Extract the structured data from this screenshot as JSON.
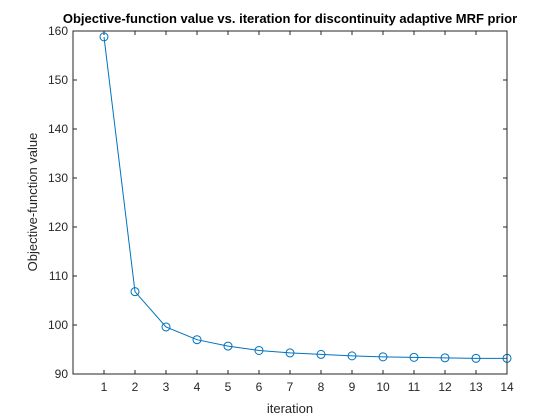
{
  "chart_data": {
    "type": "line",
    "title": "Objective-function value vs. iteration for discontinuity adaptive MRF prior",
    "xlabel": "iteration",
    "ylabel": "Objective-function value",
    "xlim": [
      0,
      14
    ],
    "ylim": [
      90,
      160
    ],
    "xticks": [
      1,
      2,
      3,
      4,
      5,
      6,
      7,
      8,
      9,
      10,
      11,
      12,
      13,
      14
    ],
    "yticks": [
      90,
      100,
      110,
      120,
      130,
      140,
      150,
      160
    ],
    "grid": false,
    "marker": "circle",
    "series": [
      {
        "x": [
          1,
          2,
          3,
          4,
          5,
          6,
          7,
          8,
          9,
          10,
          11,
          12,
          13,
          14
        ],
        "values": [
          158.8,
          106.8,
          99.6,
          97.0,
          95.7,
          94.8,
          94.3,
          94.0,
          93.7,
          93.5,
          93.4,
          93.3,
          93.2,
          93.2
        ],
        "color": "#0072BD"
      }
    ]
  }
}
